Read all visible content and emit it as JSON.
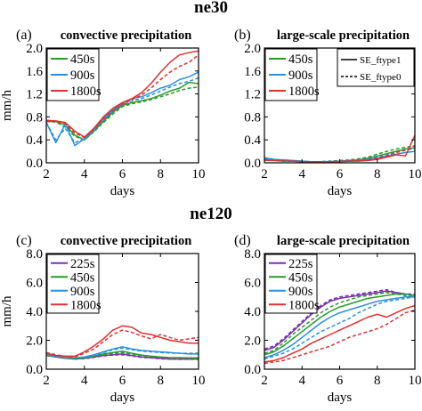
{
  "figure": {
    "row_titles": [
      "ne30",
      "ne120"
    ]
  },
  "style": {
    "colors": {
      "225s": "#7b2fb0",
      "450s": "#2a9a2a",
      "900s": "#2b8fe0",
      "1800s": "#e03030"
    },
    "solid_name": "SE_ftype1",
    "dashed_name": "SE_ftype0"
  },
  "chart_data": [
    {
      "id": "a",
      "type": "line",
      "panel_label": "(a)",
      "title": "convective precipitation",
      "xlabel": "days",
      "ylabel": "mm/h",
      "xlim": [
        2,
        10
      ],
      "ylim": [
        0,
        2.0
      ],
      "xticks": [
        "2",
        "4",
        "6",
        "8",
        "10"
      ],
      "yticks": [
        "0.0",
        "0.4",
        "0.8",
        "1.2",
        "1.6",
        "2.0"
      ],
      "legend": [
        "450s",
        "900s",
        "1800s"
      ],
      "legend_position": "upper-left",
      "x": [
        2,
        2.5,
        3,
        3.5,
        4,
        4.5,
        5,
        5.5,
        6,
        6.5,
        7,
        7.5,
        8,
        8.5,
        9,
        9.5,
        10
      ],
      "series": [
        {
          "name": "450s",
          "style": "solid",
          "values": [
            0.72,
            0.72,
            0.66,
            0.48,
            0.4,
            0.55,
            0.72,
            0.88,
            1.0,
            1.05,
            1.08,
            1.12,
            1.18,
            1.25,
            1.3,
            1.4,
            1.38
          ]
        },
        {
          "name": "450s",
          "style": "dashed",
          "values": [
            0.72,
            0.71,
            0.62,
            0.46,
            0.4,
            0.54,
            0.7,
            0.85,
            0.98,
            1.03,
            1.06,
            1.1,
            1.15,
            1.2,
            1.26,
            1.3,
            1.32
          ]
        },
        {
          "name": "900s",
          "style": "solid",
          "values": [
            0.7,
            0.35,
            0.68,
            0.3,
            0.42,
            0.58,
            0.78,
            0.92,
            1.05,
            1.12,
            1.15,
            1.22,
            1.3,
            1.35,
            1.45,
            1.5,
            1.58
          ]
        },
        {
          "name": "900s",
          "style": "dashed",
          "values": [
            0.7,
            0.4,
            0.6,
            0.35,
            0.42,
            0.56,
            0.74,
            0.9,
            1.02,
            1.08,
            1.12,
            1.18,
            1.25,
            1.32,
            1.38,
            1.42,
            1.48
          ]
        },
        {
          "name": "1800s",
          "style": "solid",
          "values": [
            0.74,
            0.73,
            0.7,
            0.55,
            0.45,
            0.6,
            0.8,
            0.95,
            1.05,
            1.12,
            1.22,
            1.38,
            1.58,
            1.75,
            1.88,
            1.92,
            1.95
          ]
        },
        {
          "name": "1800s",
          "style": "dashed",
          "values": [
            0.73,
            0.72,
            0.68,
            0.52,
            0.44,
            0.58,
            0.76,
            0.9,
            1.02,
            1.1,
            1.18,
            1.3,
            1.45,
            1.58,
            1.68,
            1.75,
            1.88
          ]
        }
      ]
    },
    {
      "id": "b",
      "type": "line",
      "panel_label": "(b)",
      "title": "large-scale precipitation",
      "xlabel": "days",
      "ylabel": "",
      "xlim": [
        2,
        10
      ],
      "ylim": [
        0,
        2.0
      ],
      "xticks": [
        "2",
        "4",
        "6",
        "8",
        "10"
      ],
      "yticks": [
        "0.0",
        "0.4",
        "0.8",
        "1.2",
        "1.6",
        "2.0"
      ],
      "legend": [
        "450s",
        "900s",
        "1800s"
      ],
      "legend_position": "upper-left",
      "x": [
        2,
        2.5,
        3,
        3.5,
        4,
        4.5,
        5,
        5.5,
        6,
        6.5,
        7,
        7.5,
        8,
        8.5,
        9,
        9.5,
        10
      ],
      "series": [
        {
          "name": "450s",
          "style": "solid",
          "values": [
            0.06,
            0.05,
            0.04,
            0.03,
            0.02,
            0.02,
            0.02,
            0.02,
            0.03,
            0.04,
            0.05,
            0.08,
            0.12,
            0.16,
            0.2,
            0.24,
            0.26
          ]
        },
        {
          "name": "450s",
          "style": "dashed",
          "values": [
            0.07,
            0.05,
            0.04,
            0.03,
            0.02,
            0.02,
            0.02,
            0.03,
            0.04,
            0.05,
            0.07,
            0.1,
            0.15,
            0.2,
            0.24,
            0.27,
            0.3
          ]
        },
        {
          "name": "900s",
          "style": "solid",
          "values": [
            0.08,
            0.06,
            0.05,
            0.04,
            0.03,
            0.02,
            0.02,
            0.02,
            0.03,
            0.03,
            0.04,
            0.06,
            0.08,
            0.12,
            0.15,
            0.18,
            0.2
          ]
        },
        {
          "name": "900s",
          "style": "dashed",
          "values": [
            0.09,
            0.06,
            0.05,
            0.04,
            0.03,
            0.02,
            0.02,
            0.03,
            0.03,
            0.04,
            0.05,
            0.07,
            0.1,
            0.14,
            0.18,
            0.22,
            0.25
          ]
        },
        {
          "name": "1800s",
          "style": "solid",
          "values": [
            0.04,
            0.04,
            0.03,
            0.03,
            0.02,
            0.02,
            0.02,
            0.02,
            0.02,
            0.03,
            0.03,
            0.04,
            0.06,
            0.1,
            0.14,
            0.12,
            0.48
          ]
        },
        {
          "name": "1800s",
          "style": "dashed",
          "values": [
            0.05,
            0.04,
            0.03,
            0.03,
            0.02,
            0.02,
            0.02,
            0.02,
            0.03,
            0.03,
            0.04,
            0.05,
            0.08,
            0.12,
            0.18,
            0.22,
            0.3
          ]
        }
      ],
      "line_style_legend": [
        "SE_ftype1",
        "SE_ftype0"
      ],
      "line_style_legend_position": "upper-right"
    },
    {
      "id": "c",
      "type": "line",
      "panel_label": "(c)",
      "title": "convective precipitation",
      "xlabel": "days",
      "ylabel": "mm/h",
      "xlim": [
        2,
        10
      ],
      "ylim": [
        0,
        8.0
      ],
      "xticks": [
        "2",
        "4",
        "6",
        "8",
        "10"
      ],
      "yticks": [
        "0.0",
        "2.0",
        "4.0",
        "6.0",
        "8.0"
      ],
      "legend": [
        "225s",
        "450s",
        "900s",
        "1800s"
      ],
      "legend_position": "upper-left",
      "x": [
        2,
        2.5,
        3,
        3.5,
        4,
        4.5,
        5,
        5.5,
        6,
        6.5,
        7,
        7.5,
        8,
        8.5,
        9,
        9.5,
        10
      ],
      "series": [
        {
          "name": "225s",
          "style": "solid",
          "values": [
            0.95,
            0.85,
            0.75,
            0.7,
            0.75,
            0.85,
            0.95,
            1.0,
            1.05,
            0.95,
            0.85,
            0.8,
            0.75,
            0.7,
            0.7,
            0.7,
            0.7
          ]
        },
        {
          "name": "225s",
          "style": "dashed",
          "values": [
            0.95,
            0.85,
            0.75,
            0.7,
            0.72,
            0.82,
            0.92,
            0.98,
            1.0,
            0.92,
            0.82,
            0.78,
            0.72,
            0.7,
            0.68,
            0.68,
            0.68
          ]
        },
        {
          "name": "450s",
          "style": "solid",
          "values": [
            0.95,
            0.88,
            0.78,
            0.72,
            0.78,
            0.9,
            1.05,
            1.15,
            1.25,
            1.1,
            0.98,
            0.9,
            0.85,
            0.8,
            0.8,
            0.78,
            0.78
          ]
        },
        {
          "name": "450s",
          "style": "dashed",
          "values": [
            0.95,
            0.86,
            0.76,
            0.7,
            0.76,
            0.88,
            1.0,
            1.1,
            1.15,
            1.05,
            0.95,
            0.88,
            0.82,
            0.78,
            0.76,
            0.75,
            0.75
          ]
        },
        {
          "name": "900s",
          "style": "solid",
          "values": [
            1.0,
            0.9,
            0.82,
            0.78,
            0.85,
            1.0,
            1.2,
            1.4,
            1.55,
            1.4,
            1.3,
            1.25,
            1.2,
            1.15,
            1.1,
            1.05,
            1.05
          ]
        },
        {
          "name": "900s",
          "style": "dashed",
          "values": [
            1.0,
            0.88,
            0.8,
            0.76,
            0.82,
            0.95,
            1.15,
            1.35,
            1.45,
            1.35,
            1.25,
            1.2,
            1.15,
            1.12,
            1.1,
            1.1,
            1.1
          ]
        },
        {
          "name": "1800s",
          "style": "solid",
          "values": [
            1.1,
            0.95,
            0.9,
            0.9,
            1.2,
            1.6,
            2.1,
            2.7,
            3.0,
            2.9,
            2.5,
            2.4,
            2.2,
            2.0,
            1.9,
            1.8,
            1.8
          ]
        },
        {
          "name": "1800s",
          "style": "dashed",
          "values": [
            1.15,
            1.0,
            0.9,
            0.85,
            1.1,
            1.4,
            1.9,
            2.4,
            2.7,
            2.55,
            2.3,
            2.1,
            2.4,
            2.2,
            2.0,
            2.1,
            2.2
          ]
        }
      ]
    },
    {
      "id": "d",
      "type": "line",
      "panel_label": "(d)",
      "title": "large-scale precipitation",
      "xlabel": "days",
      "ylabel": "",
      "xlim": [
        2,
        10
      ],
      "ylim": [
        0,
        8.0
      ],
      "xticks": [
        "2",
        "4",
        "6",
        "8",
        "10"
      ],
      "yticks": [
        "0.0",
        "2.0",
        "4.0",
        "6.0",
        "8.0"
      ],
      "legend": [
        "225s",
        "450s",
        "900s",
        "1800s"
      ],
      "legend_position": "upper-left",
      "x": [
        2,
        2.5,
        3,
        3.5,
        4,
        4.5,
        5,
        5.5,
        6,
        6.5,
        7,
        7.5,
        8,
        8.5,
        9,
        9.5,
        10
      ],
      "series": [
        {
          "name": "225s",
          "style": "solid",
          "values": [
            1.3,
            1.5,
            2.0,
            2.6,
            3.2,
            3.8,
            4.3,
            4.7,
            4.9,
            5.0,
            5.1,
            5.2,
            5.3,
            5.4,
            5.3,
            5.2,
            5.1
          ]
        },
        {
          "name": "225s",
          "style": "dashed",
          "values": [
            1.4,
            1.6,
            2.1,
            2.7,
            3.3,
            3.9,
            4.4,
            4.8,
            5.0,
            5.1,
            5.2,
            5.3,
            5.4,
            5.5,
            5.3,
            5.2,
            5.2
          ]
        },
        {
          "name": "450s",
          "style": "solid",
          "values": [
            1.0,
            1.2,
            1.6,
            2.1,
            2.6,
            3.1,
            3.6,
            4.0,
            4.3,
            4.5,
            4.7,
            4.9,
            5.0,
            5.1,
            5.2,
            5.2,
            5.1
          ]
        },
        {
          "name": "450s",
          "style": "dashed",
          "values": [
            1.1,
            1.3,
            1.8,
            2.4,
            2.9,
            3.4,
            3.9,
            4.3,
            4.6,
            4.8,
            5.0,
            5.1,
            5.2,
            5.3,
            5.2,
            5.1,
            5.0
          ]
        },
        {
          "name": "900s",
          "style": "solid",
          "values": [
            0.8,
            1.0,
            1.3,
            1.7,
            2.2,
            2.7,
            3.2,
            3.6,
            3.9,
            4.1,
            4.3,
            4.5,
            4.7,
            4.8,
            4.9,
            5.0,
            5.0
          ]
        },
        {
          "name": "900s",
          "style": "dashed",
          "values": [
            0.7,
            0.9,
            1.1,
            1.4,
            1.8,
            2.2,
            2.6,
            2.9,
            3.2,
            3.5,
            3.9,
            4.2,
            4.5,
            4.7,
            4.8,
            4.9,
            5.0
          ]
        },
        {
          "name": "1800s",
          "style": "solid",
          "values": [
            0.5,
            0.6,
            0.8,
            1.1,
            1.4,
            1.8,
            2.1,
            2.4,
            2.7,
            3.0,
            3.3,
            3.6,
            3.8,
            3.6,
            3.9,
            4.2,
            4.4
          ]
        },
        {
          "name": "1800s",
          "style": "dashed",
          "values": [
            0.4,
            0.5,
            0.6,
            0.8,
            1.0,
            1.2,
            1.4,
            1.6,
            1.9,
            2.2,
            2.4,
            2.6,
            2.8,
            3.1,
            3.5,
            3.9,
            4.1
          ]
        }
      ]
    }
  ]
}
